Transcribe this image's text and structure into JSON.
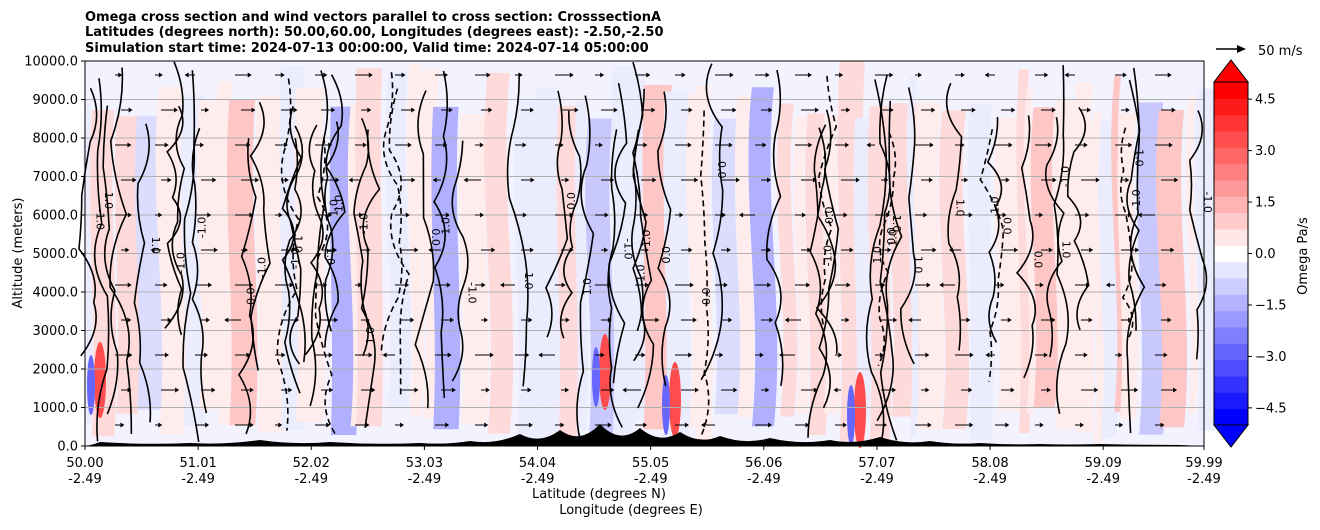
{
  "chart_data": {
    "type": "heatmap",
    "title_lines": [
      "Omega cross section and wind vectors parallel to cross section: CrosssectionA",
      "Latitudes (degrees north): 50.00,60.00, Longitudes (degrees east): -2.50,-2.50",
      "Simulation start time: 2024-07-13 00:00:00, Valid time: 2024-07-14 05:00:00"
    ],
    "ylabel": "Altitude (meters)",
    "xlabel_lat": "Latitude (degrees N)",
    "xlabel_lon": "Longitude (degrees E)",
    "ylim": [
      0,
      10000
    ],
    "xlim": [
      50.0,
      59.99
    ],
    "y_ticks": [
      "0.0",
      "1000.0",
      "2000.0",
      "3000.0",
      "4000.0",
      "5000.0",
      "6000.0",
      "7000.0",
      "8000.0",
      "9000.0",
      "10000.0"
    ],
    "x_ticks_lat": [
      "50.00",
      "51.01",
      "52.02",
      "53.03",
      "54.04",
      "55.05",
      "56.06",
      "57.07",
      "58.08",
      "59.09",
      "59.99"
    ],
    "x_ticks_lon": [
      "-2.49",
      "-2.49",
      "-2.49",
      "-2.49",
      "-2.49",
      "-2.49",
      "-2.49",
      "-2.49",
      "-2.49",
      "-2.49",
      "-2.49"
    ],
    "grid": "horizontal",
    "colorbar": {
      "label": "Omega Pa/s",
      "ticks": [
        "4.5",
        "3.0",
        "1.5",
        "0.0",
        "−1.5",
        "−3.0",
        "−4.5"
      ],
      "range": [
        -5.0,
        5.0
      ],
      "colors": [
        "#0000ff",
        "#1a1aff",
        "#3333ff",
        "#4d4dff",
        "#6666ff",
        "#8080ff",
        "#9999ff",
        "#b3b3ff",
        "#ccccff",
        "#e6e6ff",
        "#ffffff",
        "#ffe6e6",
        "#ffcccc",
        "#ffb3b3",
        "#ff9999",
        "#ff8080",
        "#ff6666",
        "#ff4d4d",
        "#ff3333",
        "#ff1a1a",
        "#ff0000"
      ]
    },
    "vector_key": "50 m/s",
    "contour_labels": [
      "0.0",
      "1.0",
      "-1.0"
    ],
    "colorbar_ticks_values": [
      4.5,
      3.0,
      1.5,
      0.0,
      -1.5,
      -3.0,
      -4.5
    ]
  }
}
